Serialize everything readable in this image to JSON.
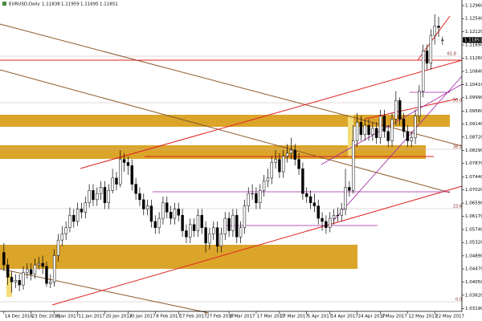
{
  "chart_data": {
    "type": "candlestick",
    "title": "EURUSD,Daily",
    "header_values": [
      1.11838,
      1.11959,
      1.11695,
      1.11851
    ],
    "open": [
      1.05,
      1.046,
      1.042,
      1.0405,
      1.041,
      1.0395,
      1.0435,
      1.0445,
      1.043,
      1.046,
      1.0465,
      1.0455,
      1.04,
      1.0405,
      1.049,
      1.054,
      1.056,
      1.058,
      1.062,
      1.06,
      1.064,
      1.063,
      1.066,
      1.07,
      1.067,
      1.069,
      1.071,
      1.066,
      1.07,
      1.074,
      1.072,
      1.08,
      1.079,
      1.078,
      1.072,
      1.069,
      1.067,
      1.064,
      1.065,
      1.06,
      1.058,
      1.061,
      1.066,
      1.063,
      1.061,
      1.064,
      1.062,
      1.057,
      1.055,
      1.059,
      1.057,
      1.062,
      1.058,
      1.053,
      1.056,
      1.058,
      1.052,
      1.056,
      1.061,
      1.057,
      1.062,
      1.055,
      1.058,
      1.065,
      1.069,
      1.069,
      1.066,
      1.07,
      1.073,
      1.074,
      1.079,
      1.08,
      1.076,
      1.081,
      1.082,
      1.083,
      1.08,
      1.077,
      1.069,
      1.068,
      1.066,
      1.065,
      1.061,
      1.06,
      1.058,
      1.061,
      1.062,
      1.062,
      1.064,
      1.071,
      1.07,
      1.086,
      1.092,
      1.088,
      1.091,
      1.088,
      1.09,
      1.087,
      1.094,
      1.089,
      1.086,
      1.093,
      1.099,
      1.093,
      1.089,
      1.086,
      1.087,
      1.094,
      1.102,
      1.115,
      1.111,
      1.12,
      1.123,
      1.11838
    ],
    "high": [
      1.053,
      1.048,
      1.044,
      1.043,
      1.043,
      1.0455,
      1.0465,
      1.0465,
      1.048,
      1.0485,
      1.049,
      1.047,
      1.043,
      1.051,
      1.056,
      1.0585,
      1.06,
      1.0645,
      1.064,
      1.066,
      1.066,
      1.068,
      1.072,
      1.072,
      1.071,
      1.073,
      1.073,
      1.072,
      1.077,
      1.076,
      1.083,
      1.082,
      1.081,
      1.08,
      1.074,
      1.071,
      1.069,
      1.067,
      1.067,
      1.062,
      1.063,
      1.068,
      1.068,
      1.065,
      1.066,
      1.066,
      1.064,
      1.059,
      1.061,
      1.061,
      1.064,
      1.064,
      1.06,
      1.058,
      1.06,
      1.06,
      1.058,
      1.063,
      1.063,
      1.064,
      1.064,
      1.06,
      1.067,
      1.071,
      1.072,
      1.071,
      1.072,
      1.075,
      1.077,
      1.081,
      1.083,
      1.082,
      1.083,
      1.085,
      1.087,
      1.085,
      1.082,
      1.079,
      1.071,
      1.07,
      1.069,
      1.067,
      1.063,
      1.062,
      1.063,
      1.064,
      1.0645,
      1.066,
      1.077,
      1.073,
      1.091,
      1.095,
      1.094,
      1.093,
      1.093,
      1.092,
      1.092,
      1.096,
      1.096,
      1.091,
      1.095,
      1.102,
      1.1,
      1.095,
      1.091,
      1.089,
      1.096,
      1.104,
      1.117,
      1.117,
      1.122,
      1.1268,
      1.126,
      1.11959
    ],
    "low": [
      1.044,
      1.0395,
      1.037,
      1.0385,
      1.0375,
      1.038,
      1.0415,
      1.041,
      1.0415,
      1.0445,
      1.043,
      1.039,
      1.0385,
      1.039,
      1.047,
      1.052,
      1.054,
      1.0565,
      1.058,
      1.0585,
      1.061,
      1.061,
      1.0645,
      1.065,
      1.065,
      1.067,
      1.064,
      1.064,
      1.069,
      1.07,
      1.071,
      1.076,
      1.075,
      1.07,
      1.067,
      1.065,
      1.062,
      1.062,
      1.058,
      1.056,
      1.056,
      1.059,
      1.061,
      1.059,
      1.059,
      1.06,
      1.055,
      1.053,
      1.053,
      1.055,
      1.055,
      1.056,
      1.05,
      1.051,
      1.054,
      1.05,
      1.05,
      1.054,
      1.055,
      1.055,
      1.053,
      1.053,
      1.056,
      1.063,
      1.067,
      1.064,
      1.064,
      1.068,
      1.071,
      1.072,
      1.077,
      1.074,
      1.074,
      1.079,
      1.08,
      1.078,
      1.075,
      1.067,
      1.066,
      1.064,
      1.063,
      1.059,
      1.057,
      1.056,
      1.0565,
      1.059,
      1.06,
      1.06,
      1.062,
      1.068,
      1.069,
      1.084,
      1.086,
      1.086,
      1.086,
      1.086,
      1.085,
      1.085,
      1.087,
      1.084,
      1.084,
      1.091,
      1.091,
      1.087,
      1.084,
      1.084,
      1.085,
      1.092,
      1.1,
      1.109,
      1.109,
      1.117,
      1.1195,
      1.11695
    ],
    "close": [
      1.046,
      1.042,
      1.0405,
      1.041,
      1.0395,
      1.0435,
      1.0445,
      1.043,
      1.046,
      1.0465,
      1.0455,
      1.04,
      1.0405,
      1.049,
      1.054,
      1.056,
      1.058,
      1.062,
      1.06,
      1.064,
      1.063,
      1.066,
      1.07,
      1.067,
      1.069,
      1.071,
      1.066,
      1.07,
      1.074,
      1.072,
      1.08,
      1.079,
      1.078,
      1.072,
      1.069,
      1.067,
      1.064,
      1.065,
      1.06,
      1.058,
      1.061,
      1.066,
      1.063,
      1.061,
      1.064,
      1.062,
      1.057,
      1.055,
      1.059,
      1.057,
      1.062,
      1.058,
      1.053,
      1.056,
      1.058,
      1.052,
      1.056,
      1.061,
      1.057,
      1.062,
      1.055,
      1.058,
      1.065,
      1.069,
      1.069,
      1.066,
      1.07,
      1.073,
      1.074,
      1.079,
      1.08,
      1.076,
      1.081,
      1.082,
      1.083,
      1.08,
      1.077,
      1.069,
      1.068,
      1.066,
      1.065,
      1.061,
      1.06,
      1.058,
      1.061,
      1.062,
      1.062,
      1.064,
      1.071,
      1.07,
      1.086,
      1.092,
      1.088,
      1.091,
      1.088,
      1.09,
      1.087,
      1.094,
      1.089,
      1.086,
      1.093,
      1.099,
      1.093,
      1.089,
      1.086,
      1.087,
      1.094,
      1.102,
      1.115,
      1.111,
      1.12,
      1.123,
      1.1225,
      1.11851
    ],
    "xlim": [
      -1,
      118
    ],
    "xticks": [
      {
        "value": 0,
        "label": "14 Dec 2016"
      },
      {
        "value": 7,
        "label": "23 Dec 2016"
      },
      {
        "value": 13,
        "label": "3 Jan 2017"
      },
      {
        "value": 19,
        "label": "11 Jan 2017"
      },
      {
        "value": 26,
        "label": "20 Jan 2017"
      },
      {
        "value": 32,
        "label": "30 Jan 2017"
      },
      {
        "value": 39,
        "label": "8 Feb 2017"
      },
      {
        "value": 45,
        "label": "17 Feb 2017"
      },
      {
        "value": 52,
        "label": "27 Feb 2017"
      },
      {
        "value": 58,
        "label": "8 Mar 2017"
      },
      {
        "value": 65,
        "label": "17 Mar 2017"
      },
      {
        "value": 71,
        "label": "27 Mar 2017"
      },
      {
        "value": 78,
        "label": "5 Apr 2017"
      },
      {
        "value": 84,
        "label": "14 Apr 2017"
      },
      {
        "value": 91,
        "label": "24 Apr 2017"
      },
      {
        "value": 97,
        "label": "3 May 2017"
      },
      {
        "value": 104,
        "label": "12 May 2017"
      },
      {
        "value": 111,
        "label": "22 May 2017"
      }
    ],
    "ylim": [
      1.031,
      1.1314
    ],
    "yticks": [
      {
        "value": 1.1296,
        "label": "1.12960"
      },
      {
        "value": 1.1254,
        "label": "1.12540"
      },
      {
        "value": 1.1212,
        "label": "1.12120"
      },
      {
        "value": 1.1169,
        "label": "1.11690"
      },
      {
        "value": 1.1126,
        "label": "1.11260"
      },
      {
        "value": 1.1084,
        "label": "1.10840"
      },
      {
        "value": 1.1041,
        "label": "1.10410"
      },
      {
        "value": 1.0999,
        "label": "1.09990"
      },
      {
        "value": 1.0956,
        "label": "1.09560"
      },
      {
        "value": 1.0914,
        "label": "1.09140"
      },
      {
        "value": 1.0872,
        "label": "1.08720"
      },
      {
        "value": 1.0829,
        "label": "1.08290"
      },
      {
        "value": 1.0787,
        "label": "1.07870"
      },
      {
        "value": 1.0744,
        "label": "1.07440"
      },
      {
        "value": 1.0702,
        "label": "1.07020"
      },
      {
        "value": 1.0659,
        "label": "1.06590"
      },
      {
        "value": 1.0617,
        "label": "1.06170"
      },
      {
        "value": 1.0574,
        "label": "1.05740"
      },
      {
        "value": 1.0532,
        "label": "1.05320"
      },
      {
        "value": 1.0489,
        "label": "1.04890"
      },
      {
        "value": 1.0447,
        "label": "1.04470"
      },
      {
        "value": 1.0405,
        "label": "1.04050"
      },
      {
        "value": 1.0362,
        "label": "1.03620"
      },
      {
        "value": 1.0319,
        "label": "1.03190"
      }
    ],
    "last_price": {
      "value": 1.11851,
      "label": "1.11851"
    },
    "annotations": [
      "61.8",
      "50.0",
      "38.2",
      "23.6",
      "0.0"
    ],
    "bull_color": "#ffffff",
    "bear_color": "#000000"
  }
}
